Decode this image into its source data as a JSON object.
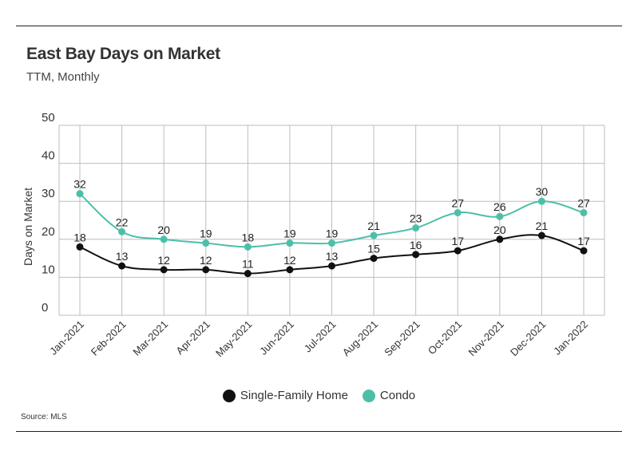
{
  "header": {
    "title": "East Bay Days on Market",
    "subtitle": "TTM, Monthly"
  },
  "footer": {
    "source": "Source:  MLS"
  },
  "chart_data": {
    "type": "line",
    "title": "East Bay Days on Market",
    "subtitle": "TTM, Monthly",
    "xlabel": "",
    "ylabel": "Days on Market",
    "ylim": [
      0,
      50
    ],
    "yticks": [
      0,
      10,
      20,
      30,
      40,
      50
    ],
    "grid": true,
    "legend_position": "bottom",
    "categories": [
      "Jan-2021",
      "Feb-2021",
      "Mar-2021",
      "Apr-2021",
      "May-2021",
      "Jun-2021",
      "Jul-2021",
      "Aug-2021",
      "Sep-2021",
      "Oct-2021",
      "Nov-2021",
      "Dec-2021",
      "Jan-2022"
    ],
    "series": [
      {
        "name": "Single-Family Home",
        "color": "#111111",
        "values": [
          18,
          13,
          12,
          12,
          11,
          12,
          13,
          15,
          16,
          17,
          20,
          21,
          17
        ]
      },
      {
        "name": "Condo",
        "color": "#4dbfa9",
        "values": [
          32,
          22,
          20,
          19,
          18,
          19,
          19,
          21,
          23,
          27,
          26,
          30,
          27
        ]
      }
    ]
  }
}
